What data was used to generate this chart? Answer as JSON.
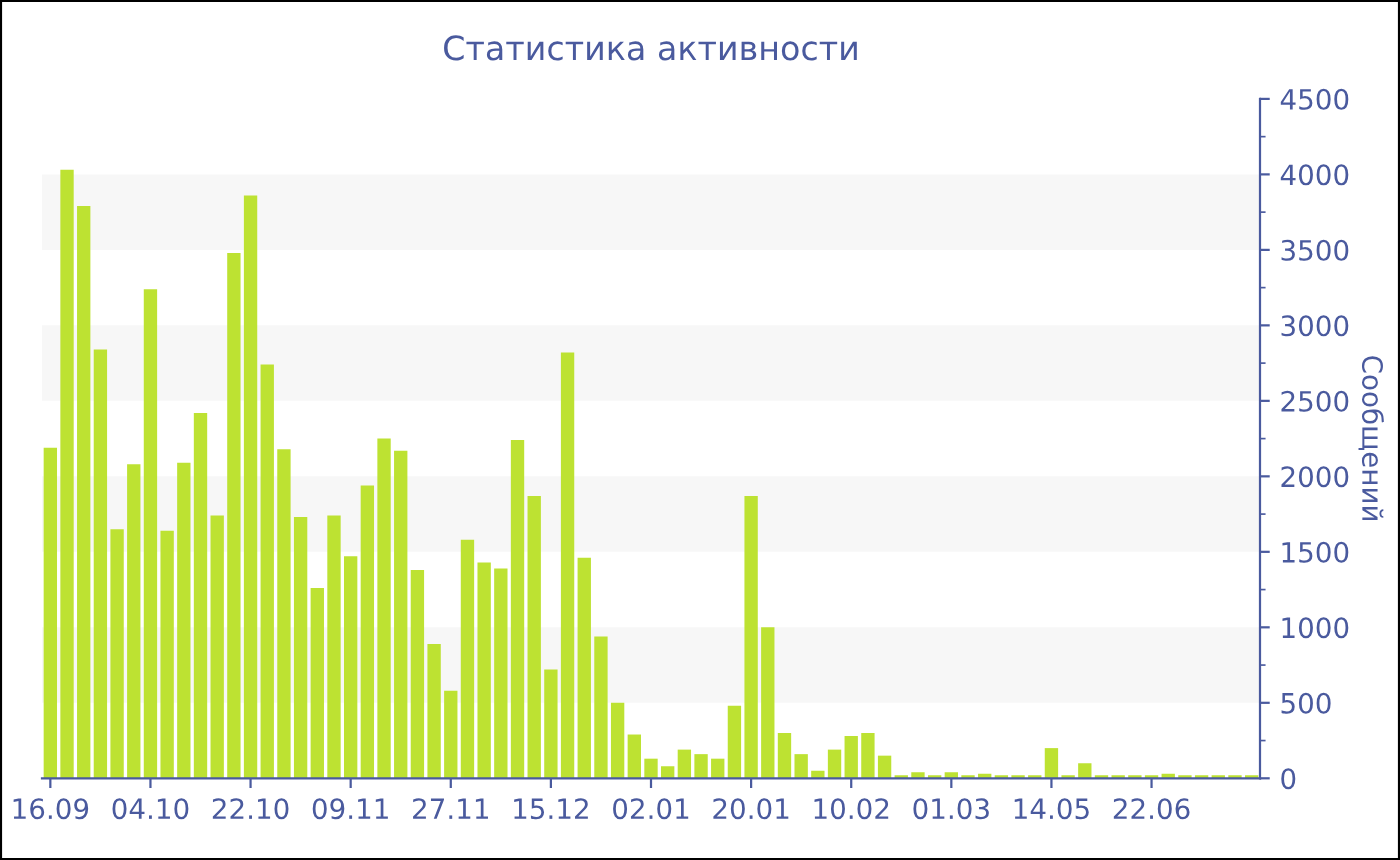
{
  "chart_data": {
    "type": "bar",
    "title": "Статистика активности",
    "ylabel": "Сообщений",
    "categories": [
      "16.09",
      null,
      null,
      null,
      null,
      null,
      "04.10",
      null,
      null,
      null,
      null,
      null,
      "22.10",
      null,
      null,
      null,
      null,
      null,
      "09.11",
      null,
      null,
      null,
      null,
      null,
      "27.11",
      null,
      null,
      null,
      null,
      null,
      "15.12",
      null,
      null,
      null,
      null,
      null,
      "02.01",
      null,
      null,
      null,
      null,
      null,
      "20.01",
      null,
      null,
      null,
      null,
      null,
      "10.02",
      null,
      null,
      null,
      null,
      null,
      "01.03",
      null,
      null,
      null,
      null,
      null,
      "14.05",
      null,
      null,
      null,
      null,
      null,
      "22.06",
      null,
      null,
      null,
      null,
      null,
      null
    ],
    "values": [
      2190,
      4030,
      3790,
      2840,
      1650,
      2080,
      3240,
      1640,
      2090,
      2420,
      1740,
      3480,
      3860,
      2740,
      2180,
      1730,
      1260,
      1740,
      1470,
      1940,
      2250,
      2170,
      1380,
      890,
      580,
      1580,
      1430,
      1390,
      2240,
      1870,
      720,
      2820,
      1460,
      940,
      500,
      290,
      130,
      80,
      190,
      160,
      130,
      480,
      1870,
      1000,
      300,
      160,
      50,
      190,
      280,
      300,
      150,
      20,
      40,
      20,
      40,
      20,
      30,
      20,
      20,
      20,
      200,
      20,
      100,
      20,
      20,
      20,
      20,
      30,
      20,
      20,
      20,
      20,
      20
    ],
    "color": "#bde232",
    "ylim": [
      0,
      4500
    ],
    "yticks": [
      0,
      500,
      1000,
      1500,
      2000,
      2500,
      3000,
      3500,
      4000,
      4500
    ],
    "bands": [
      {
        "axis": "y",
        "from": 500,
        "to": 1000,
        "color": "#f7f7f7"
      },
      {
        "axis": "y",
        "from": 1500,
        "to": 2000,
        "color": "#f7f7f7"
      },
      {
        "axis": "y",
        "from": 2500,
        "to": 3000,
        "color": "#f7f7f7"
      },
      {
        "axis": "y",
        "from": 3500,
        "to": 4000,
        "color": "#f7f7f7"
      }
    ]
  }
}
